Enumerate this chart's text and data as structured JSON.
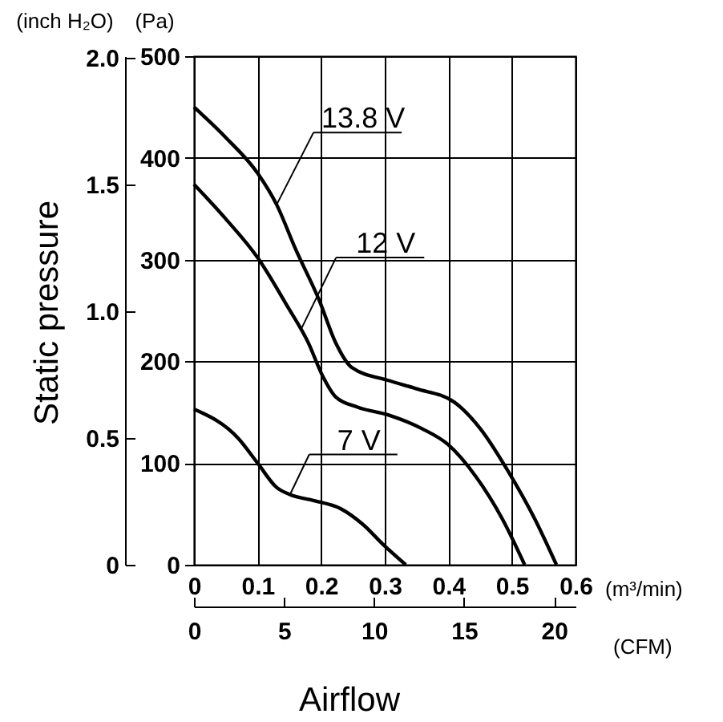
{
  "chart_data": {
    "type": "line",
    "xlabel": "(m³/min)",
    "ylabel": "(Pa)",
    "y2label": "(inch H₂O)",
    "x2label": "(CFM)",
    "xlim": [
      0,
      0.6
    ],
    "xticks": [
      0,
      0.1,
      0.2,
      0.3,
      0.4,
      0.5,
      0.6
    ],
    "ylim": [
      0,
      500
    ],
    "yticks": [
      0,
      100,
      200,
      300,
      400,
      500
    ],
    "y2lim": [
      0,
      2.007
    ],
    "y2ticks": [
      0,
      0.5,
      {
        "value": 1,
        "label": "1.0"
      },
      1.5,
      {
        "value": 2,
        "label": "2.0"
      }
    ],
    "x2lim": [
      0,
      21.19
    ],
    "x2ticks": [
      0,
      5,
      10,
      15,
      20
    ],
    "grid": true,
    "legend": false,
    "line_style": "solid",
    "series": [
      {
        "color": "#000000",
        "x": [
          0,
          0.05,
          0.1,
          0.13,
          0.16,
          0.197,
          0.223,
          0.248,
          0.307,
          0.35,
          0.409,
          0.45,
          0.494,
          0.536,
          0.57
        ],
        "values": [
          450,
          420,
          385,
          354,
          310,
          260,
          218,
          194,
          181,
          173,
          160,
          134,
          92,
          45,
          0
        ]
      },
      {
        "color": "#000000",
        "x": [
          0,
          0.05,
          0.1,
          0.147,
          0.18,
          0.202,
          0.223,
          0.257,
          0.307,
          0.358,
          0.4,
          0.443,
          0.485,
          0.52
        ],
        "values": [
          374,
          340,
          302,
          254,
          218,
          186,
          165,
          155,
          147,
          134,
          118,
          87,
          45,
          0
        ]
      },
      {
        "color": "#000000",
        "x": [
          0,
          0.07,
          0.1,
          0.13,
          0.151,
          0.189,
          0.231,
          0.265,
          0.299,
          0.333
        ],
        "values": [
          153,
          124,
          100,
          76,
          69,
          63,
          55,
          40,
          19,
          0
        ]
      }
    ],
    "annotations": [
      "Static pressure",
      "Airflow",
      {
        "text": "13.8 V",
        "x": 0.13,
        "y": 354
      },
      {
        "text": "12 V",
        "x": 0.168,
        "y": 231
      },
      {
        "text": "7 V",
        "x": 0.151,
        "y": 69
      }
    ]
  }
}
